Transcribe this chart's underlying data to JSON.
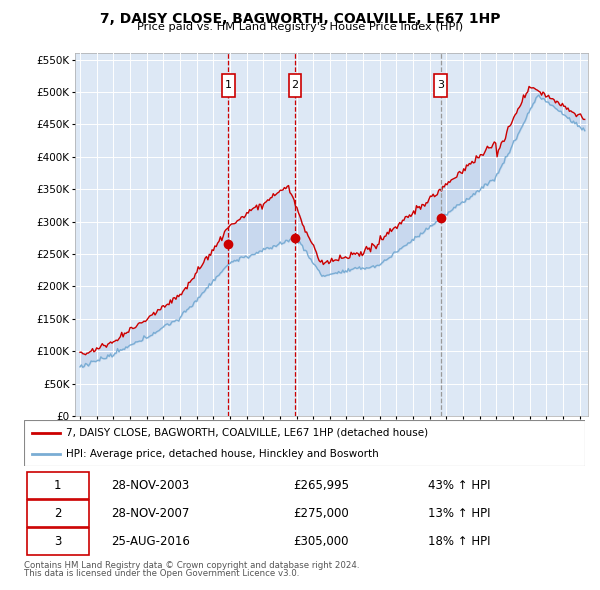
{
  "title": "7, DAISY CLOSE, BAGWORTH, COALVILLE, LE67 1HP",
  "subtitle": "Price paid vs. HM Land Registry's House Price Index (HPI)",
  "legend_label_red": "7, DAISY CLOSE, BAGWORTH, COALVILLE, LE67 1HP (detached house)",
  "legend_label_blue": "HPI: Average price, detached house, Hinckley and Bosworth",
  "footer_line1": "Contains HM Land Registry data © Crown copyright and database right 2024.",
  "footer_line2": "This data is licensed under the Open Government Licence v3.0.",
  "transactions": [
    {
      "num": 1,
      "date": "28-NOV-2003",
      "price": "£265,995",
      "change": "43% ↑ HPI",
      "year": 2003.9,
      "vline_style": "red"
    },
    {
      "num": 2,
      "date": "28-NOV-2007",
      "price": "£275,000",
      "change": "13% ↑ HPI",
      "year": 2007.9,
      "vline_style": "red"
    },
    {
      "num": 3,
      "date": "25-AUG-2016",
      "price": "£305,000",
      "change": "18% ↑ HPI",
      "year": 2016.65,
      "vline_style": "gray"
    }
  ],
  "transaction_marker_prices": [
    265995,
    275000,
    305000
  ],
  "ylim": [
    0,
    560000
  ],
  "yticks": [
    0,
    50000,
    100000,
    150000,
    200000,
    250000,
    300000,
    350000,
    400000,
    450000,
    500000,
    550000
  ],
  "xlim_start": 1994.7,
  "xlim_end": 2025.5,
  "background_color": "#ffffff",
  "plot_bg_color": "#dde8f5",
  "grid_color": "#ffffff",
  "red_color": "#cc0000",
  "blue_color": "#7aadd4",
  "fill_color": "#c8d8ee",
  "vline_red": "#cc0000",
  "vline_gray": "#999999",
  "box_color": "#cc0000"
}
